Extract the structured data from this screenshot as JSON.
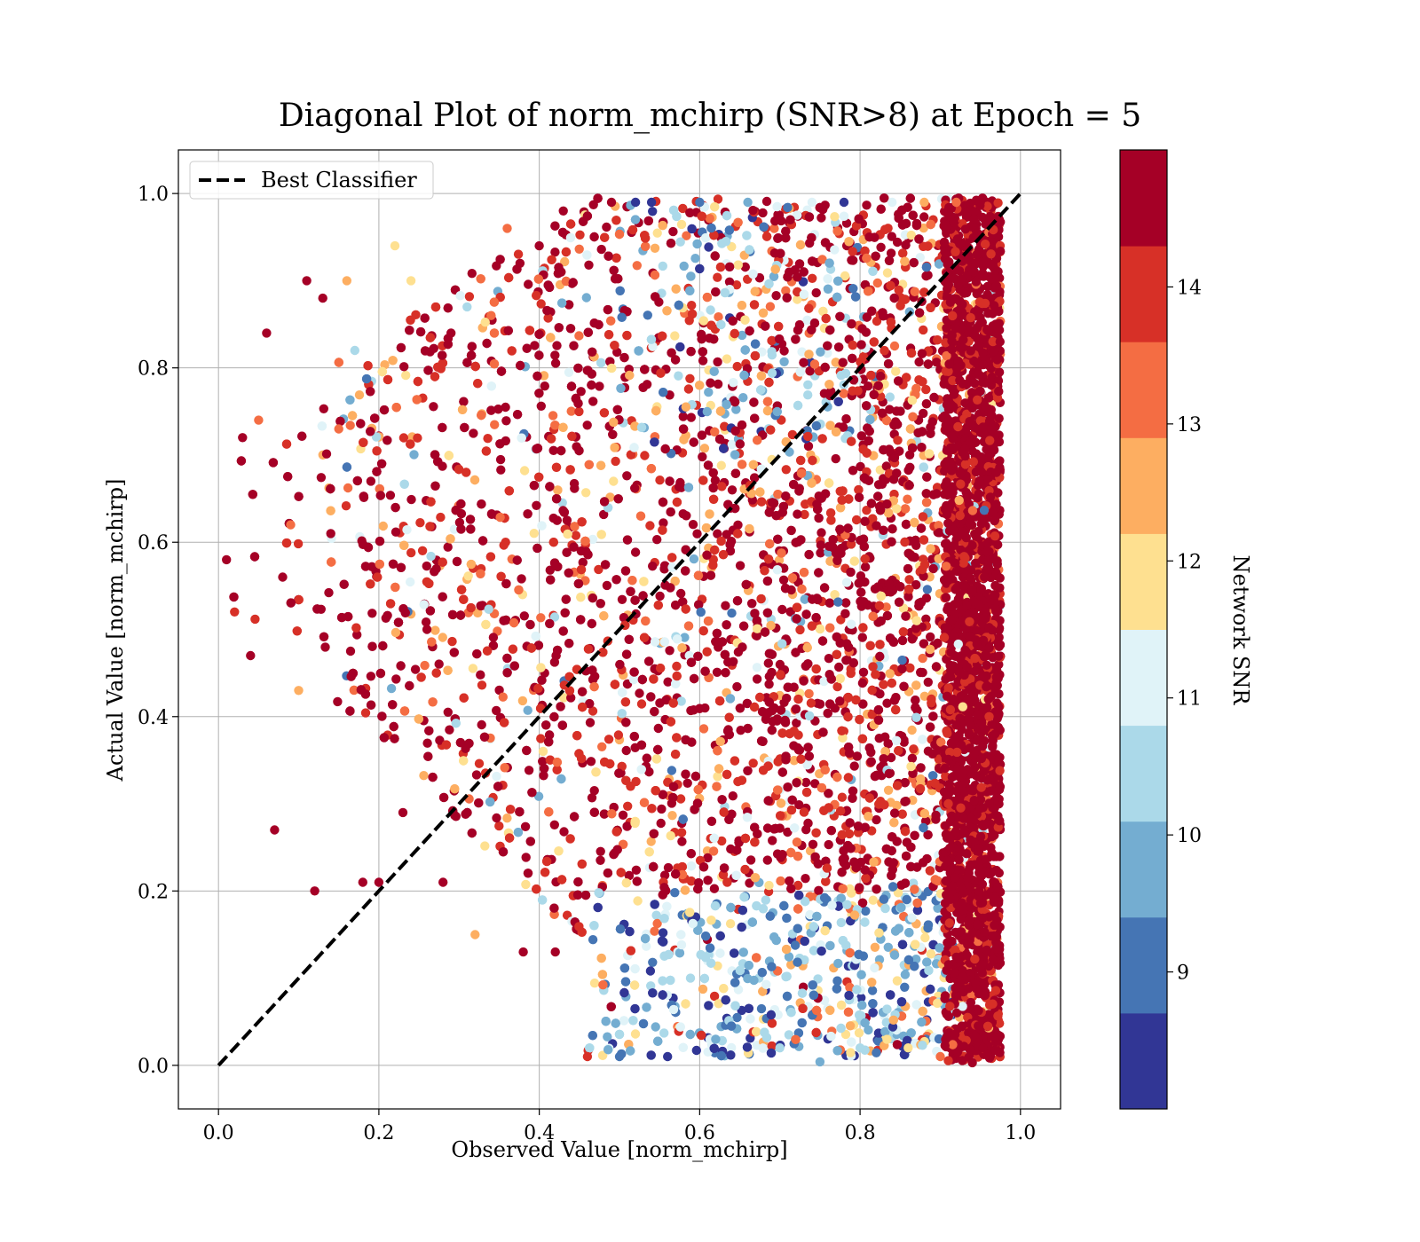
{
  "chart_data": {
    "type": "scatter",
    "title": "Diagonal Plot of norm_mchirp (SNR>8) at Epoch = 5",
    "xlabel": "Observed Value [norm_mchirp]",
    "ylabel": "Actual Value [norm_mchirp]",
    "xlim": [
      -0.05,
      1.05
    ],
    "ylim": [
      -0.05,
      1.05
    ],
    "xticks": [
      "0.0",
      "0.2",
      "0.4",
      "0.6",
      "0.8",
      "1.0"
    ],
    "yticks": [
      "0.0",
      "0.2",
      "0.4",
      "0.6",
      "0.8",
      "1.0"
    ],
    "grid": true,
    "legend": {
      "placement": "top-left",
      "entries": [
        "Best Classifier"
      ]
    },
    "reference_line": {
      "name": "Best Classifier",
      "style": "dashed",
      "color": "#000000",
      "x": [
        0.0,
        1.0
      ],
      "y": [
        0.0,
        1.0
      ]
    },
    "colorbar": {
      "label": "Network SNR",
      "range": [
        8,
        15
      ],
      "ticks": [
        "9",
        "10",
        "11",
        "12",
        "13",
        "14"
      ],
      "colors": [
        "#313695",
        "#4575b4",
        "#74add1",
        "#abd9e9",
        "#e0f3f8",
        "#fee090",
        "#fdae61",
        "#f46d43",
        "#d73027",
        "#a50026"
      ]
    },
    "series": [
      {
        "description": "approximate distribution of scatter points (color = Network SNR)",
        "points": [
          [
            0.01,
            0.58,
            14.9
          ],
          [
            0.02,
            0.52,
            14.2
          ],
          [
            0.03,
            0.72,
            14.8
          ],
          [
            0.05,
            0.74,
            13.4
          ],
          [
            0.04,
            0.47,
            14.9
          ],
          [
            0.06,
            0.84,
            14.9
          ],
          [
            0.07,
            0.27,
            14.9
          ],
          [
            0.08,
            0.56,
            14.6
          ],
          [
            0.09,
            0.62,
            13.1
          ],
          [
            0.1,
            0.43,
            12.4
          ],
          [
            0.11,
            0.9,
            14.9
          ],
          [
            0.12,
            0.2,
            14.5
          ],
          [
            0.13,
            0.88,
            14.9
          ],
          [
            0.14,
            0.61,
            14.9
          ],
          [
            0.15,
            0.73,
            13.3
          ],
          [
            0.16,
            0.9,
            12.6
          ],
          [
            0.17,
            0.82,
            10.6
          ],
          [
            0.18,
            0.21,
            14.9
          ],
          [
            0.19,
            0.67,
            14.9
          ],
          [
            0.2,
            0.21,
            14.3
          ],
          [
            0.22,
            0.94,
            12.1
          ],
          [
            0.23,
            0.29,
            14.9
          ],
          [
            0.24,
            0.9,
            11.6
          ],
          [
            0.26,
            0.5,
            14.9
          ],
          [
            0.28,
            0.21,
            14.9
          ],
          [
            0.29,
            0.84,
            14.9
          ],
          [
            0.31,
            0.87,
            10.4
          ],
          [
            0.32,
            0.15,
            12.8
          ],
          [
            0.34,
            0.86,
            13.2
          ],
          [
            0.36,
            0.96,
            13.0
          ],
          [
            0.38,
            0.13,
            14.9
          ],
          [
            0.4,
            0.94,
            14.9
          ],
          [
            0.42,
            0.13,
            14.9
          ],
          [
            0.43,
            0.98,
            14.3
          ],
          [
            0.46,
            0.01,
            13.8
          ],
          [
            0.49,
            0.99,
            14.9
          ],
          [
            0.5,
            0.01,
            9.2
          ],
          [
            0.52,
            0.99,
            8.3
          ],
          [
            0.54,
            0.99,
            8.4
          ],
          [
            0.56,
            0.01,
            8.6
          ],
          [
            0.6,
            0.99,
            9.0
          ],
          [
            0.62,
            0.03,
            9.6
          ],
          [
            0.66,
            0.99,
            9.4
          ],
          [
            0.7,
            0.02,
            10.2
          ],
          [
            0.74,
            0.99,
            10.9
          ],
          [
            0.75,
            0.004,
            9.7
          ],
          [
            0.78,
            0.99,
            8.4
          ],
          [
            0.8,
            0.02,
            10.5
          ],
          [
            0.84,
            0.99,
            11.0
          ],
          [
            0.86,
            0.02,
            11.8
          ],
          [
            0.88,
            0.99,
            12.3
          ],
          [
            0.9,
            0.01,
            13.1
          ],
          [
            0.92,
            0.99,
            13.6
          ],
          [
            0.94,
            0.003,
            14.8
          ],
          [
            0.95,
            0.99,
            14.5
          ],
          [
            0.96,
            0.42,
            14.9
          ],
          [
            0.97,
            0.68,
            14.9
          ],
          [
            0.955,
            0.08,
            14.9
          ],
          [
            0.93,
            0.55,
            14.9
          ],
          [
            0.91,
            0.3,
            14.2
          ]
        ]
      }
    ]
  }
}
